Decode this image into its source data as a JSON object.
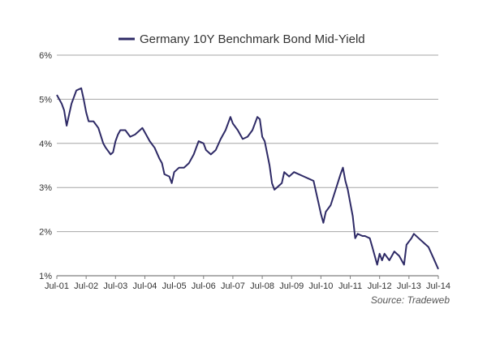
{
  "chart_data": {
    "type": "line",
    "title": "",
    "xlabel": "",
    "ylabel": "",
    "series": [
      {
        "name": "Germany 10Y Benchmark Bond Mid-Yield",
        "color": "#2e2a66",
        "x": [
          "2001-07",
          "2001-09",
          "2001-10",
          "2001-11",
          "2002-01",
          "2002-03",
          "2002-05",
          "2002-06",
          "2002-07",
          "2002-08",
          "2002-10",
          "2002-12",
          "2003-02",
          "2003-03",
          "2003-05",
          "2003-06",
          "2003-07",
          "2003-08",
          "2003-09",
          "2003-11",
          "2004-01",
          "2004-03",
          "2004-05",
          "2004-06",
          "2004-07",
          "2004-09",
          "2004-11",
          "2005-01",
          "2005-02",
          "2005-03",
          "2005-05",
          "2005-06",
          "2005-07",
          "2005-09",
          "2005-11",
          "2006-01",
          "2006-03",
          "2006-05",
          "2006-07",
          "2006-08",
          "2006-10",
          "2006-12",
          "2007-02",
          "2007-04",
          "2007-06",
          "2007-07",
          "2007-09",
          "2007-11",
          "2008-01",
          "2008-03",
          "2008-05",
          "2008-06",
          "2008-07",
          "2008-08",
          "2008-10",
          "2008-11",
          "2008-12",
          "2009-01",
          "2009-03",
          "2009-04",
          "2009-06",
          "2009-08",
          "2009-10",
          "2009-12",
          "2010-02",
          "2010-04",
          "2010-06",
          "2010-07",
          "2010-08",
          "2010-09",
          "2010-11",
          "2011-01",
          "2011-03",
          "2011-04",
          "2011-05",
          "2011-06",
          "2011-07",
          "2011-08",
          "2011-09",
          "2011-10",
          "2011-12",
          "2012-01",
          "2012-03",
          "2012-04",
          "2012-06",
          "2012-07",
          "2012-08",
          "2012-09",
          "2012-11",
          "2013-01",
          "2013-03",
          "2013-05",
          "2013-06",
          "2013-08",
          "2013-09",
          "2013-11",
          "2014-01",
          "2014-03",
          "2014-05",
          "2014-07"
        ],
        "y": [
          5.1,
          4.9,
          4.75,
          4.4,
          4.9,
          5.2,
          5.25,
          5.0,
          4.7,
          4.5,
          4.5,
          4.35,
          4.0,
          3.9,
          3.75,
          3.8,
          4.05,
          4.2,
          4.3,
          4.3,
          4.15,
          4.2,
          4.3,
          4.35,
          4.25,
          4.05,
          3.9,
          3.65,
          3.55,
          3.3,
          3.25,
          3.1,
          3.35,
          3.45,
          3.45,
          3.55,
          3.75,
          4.05,
          4.0,
          3.85,
          3.75,
          3.85,
          4.1,
          4.3,
          4.6,
          4.45,
          4.3,
          4.1,
          4.15,
          4.3,
          4.6,
          4.55,
          4.15,
          4.05,
          3.5,
          3.1,
          2.95,
          3.0,
          3.1,
          3.35,
          3.25,
          3.35,
          3.3,
          3.25,
          3.2,
          3.15,
          2.65,
          2.4,
          2.2,
          2.45,
          2.6,
          2.95,
          3.3,
          3.45,
          3.15,
          2.95,
          2.65,
          2.35,
          1.85,
          1.95,
          1.9,
          1.9,
          1.85,
          1.65,
          1.25,
          1.5,
          1.35,
          1.5,
          1.35,
          1.55,
          1.45,
          1.25,
          1.7,
          1.85,
          1.95,
          1.85,
          1.75,
          1.65,
          1.4,
          1.15
        ]
      }
    ],
    "x_ticks": [
      "Jul-01",
      "Jul-02",
      "Jul-03",
      "Jul-04",
      "Jul-05",
      "Jul-06",
      "Jul-07",
      "Jul-08",
      "Jul-09",
      "Jul-10",
      "Jul-11",
      "Jul-12",
      "Jul-13",
      "Jul-14"
    ],
    "x_tick_dates": [
      "2001-07",
      "2002-07",
      "2003-07",
      "2004-07",
      "2005-07",
      "2006-07",
      "2007-07",
      "2008-07",
      "2009-07",
      "2010-07",
      "2011-07",
      "2012-07",
      "2013-07",
      "2014-07"
    ],
    "y_ticks": [
      1,
      2,
      3,
      4,
      5,
      6
    ],
    "y_tick_labels": [
      "1%",
      "2%",
      "3%",
      "4%",
      "5%",
      "6%"
    ],
    "ylim": [
      1,
      6
    ],
    "xlim": [
      "2001-07",
      "2014-07"
    ],
    "grid": "horizontal",
    "legend_position": "top-center",
    "grid_color": "#a6a6a6",
    "axis_color": "#7f7f7f"
  },
  "source_note": "Source: Tradeweb"
}
